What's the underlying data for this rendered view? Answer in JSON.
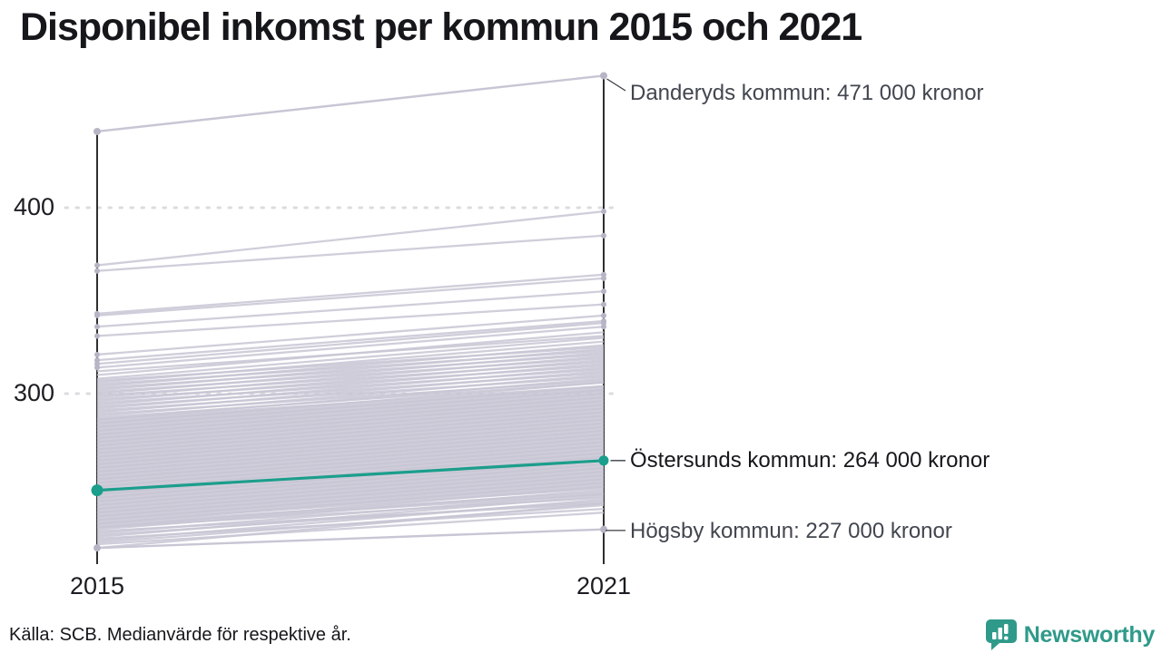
{
  "title": "Disponibel inkomst per kommun 2015 och 2021",
  "footer": {
    "source": "Källa: SCB. Medianvärde för respektive år."
  },
  "branding": {
    "name": "Newsworthy",
    "color": "#2f9a8a"
  },
  "colors": {
    "accent": "#1b9e8c",
    "line": "#c8c6d4",
    "dot": "#b7b5c5",
    "axis": "#17181a",
    "grid": "#dcdce0",
    "connector": "#3a3d44",
    "text_dark": "#15171b",
    "text_gray": "#42464f"
  },
  "chart_data": {
    "type": "line",
    "variant": "slopegraph",
    "title": "Disponibel inkomst per kommun 2015 och 2021",
    "xlabel": "",
    "ylabel": "",
    "x_categories": [
      "2015",
      "2021"
    ],
    "y_ticks": [
      400,
      300
    ],
    "ylim": [
      210,
      480
    ],
    "grid": "dotted-horizontal",
    "legend_position": "none",
    "labeled_series": [
      {
        "name": "Danderyds kommun",
        "label": "Danderyds kommun: 471 000 kronor",
        "values": [
          441,
          471
        ],
        "highlight": false
      },
      {
        "name": "Östersunds kommun",
        "label": "Östersunds kommun: 264 000 kronor",
        "values": [
          248,
          264
        ],
        "highlight": true
      },
      {
        "name": "Högsby kommun",
        "label": "Högsby kommun: 227 000 kronor",
        "values": [
          217,
          227
        ],
        "highlight": false
      }
    ],
    "background_series": [
      [
        369,
        398
      ],
      [
        366,
        385
      ],
      [
        343,
        364
      ],
      [
        342,
        362
      ],
      [
        336,
        355
      ],
      [
        331,
        348
      ],
      [
        321,
        342
      ],
      [
        318,
        339
      ],
      [
        316,
        338
      ],
      [
        314,
        336
      ],
      [
        217,
        241
      ],
      [
        219,
        236
      ],
      [
        220,
        240
      ],
      [
        221,
        243
      ],
      [
        222,
        238
      ],
      [
        223,
        245
      ],
      [
        224,
        242
      ],
      [
        225,
        246
      ],
      [
        226,
        241
      ],
      [
        227,
        248
      ],
      [
        228,
        244
      ],
      [
        228,
        250
      ],
      [
        229,
        246
      ],
      [
        230,
        252
      ],
      [
        230,
        247
      ],
      [
        231,
        249
      ],
      [
        232,
        254
      ],
      [
        232,
        250
      ],
      [
        233,
        251
      ],
      [
        234,
        256
      ],
      [
        234,
        252
      ],
      [
        235,
        253
      ],
      [
        236,
        258
      ],
      [
        236,
        254
      ],
      [
        237,
        255
      ],
      [
        238,
        260
      ],
      [
        238,
        256
      ],
      [
        239,
        257
      ],
      [
        240,
        262
      ],
      [
        240,
        258
      ],
      [
        241,
        259
      ],
      [
        242,
        264
      ],
      [
        242,
        260
      ],
      [
        243,
        261
      ],
      [
        244,
        266
      ],
      [
        244,
        262
      ],
      [
        245,
        263
      ],
      [
        246,
        268
      ],
      [
        246,
        264
      ],
      [
        247,
        265
      ],
      [
        248,
        270
      ],
      [
        248,
        266
      ],
      [
        249,
        267
      ],
      [
        250,
        272
      ],
      [
        250,
        268
      ],
      [
        251,
        269
      ],
      [
        252,
        274
      ],
      [
        252,
        270
      ],
      [
        253,
        271
      ],
      [
        254,
        276
      ],
      [
        254,
        272
      ],
      [
        255,
        273
      ],
      [
        256,
        278
      ],
      [
        256,
        274
      ],
      [
        257,
        275
      ],
      [
        258,
        280
      ],
      [
        258,
        276
      ],
      [
        259,
        277
      ],
      [
        260,
        282
      ],
      [
        260,
        278
      ],
      [
        261,
        279
      ],
      [
        262,
        284
      ],
      [
        262,
        280
      ],
      [
        263,
        281
      ],
      [
        264,
        286
      ],
      [
        264,
        282
      ],
      [
        265,
        283
      ],
      [
        266,
        288
      ],
      [
        266,
        284
      ],
      [
        267,
        285
      ],
      [
        268,
        290
      ],
      [
        268,
        286
      ],
      [
        269,
        287
      ],
      [
        270,
        292
      ],
      [
        270,
        288
      ],
      [
        271,
        289
      ],
      [
        272,
        294
      ],
      [
        272,
        290
      ],
      [
        273,
        291
      ],
      [
        274,
        296
      ],
      [
        274,
        292
      ],
      [
        275,
        293
      ],
      [
        276,
        298
      ],
      [
        276,
        294
      ],
      [
        277,
        295
      ],
      [
        278,
        300
      ],
      [
        278,
        296
      ],
      [
        279,
        297
      ],
      [
        280,
        302
      ],
      [
        280,
        298
      ],
      [
        281,
        299
      ],
      [
        282,
        304
      ],
      [
        282,
        300
      ],
      [
        283,
        301
      ],
      [
        284,
        306
      ],
      [
        284,
        302
      ],
      [
        285,
        303
      ],
      [
        286,
        308
      ],
      [
        286,
        304
      ],
      [
        287,
        306
      ],
      [
        288,
        310
      ],
      [
        289,
        307
      ],
      [
        290,
        312
      ],
      [
        291,
        309
      ],
      [
        292,
        314
      ],
      [
        293,
        311
      ],
      [
        294,
        316
      ],
      [
        295,
        313
      ],
      [
        296,
        318
      ],
      [
        297,
        315
      ],
      [
        298,
        320
      ],
      [
        299,
        317
      ],
      [
        300,
        322
      ],
      [
        301,
        319
      ],
      [
        302,
        324
      ],
      [
        303,
        321
      ],
      [
        304,
        326
      ],
      [
        305,
        323
      ],
      [
        306,
        328
      ],
      [
        307,
        325
      ],
      [
        308,
        330
      ],
      [
        310,
        333
      ],
      [
        312,
        331
      ]
    ]
  }
}
